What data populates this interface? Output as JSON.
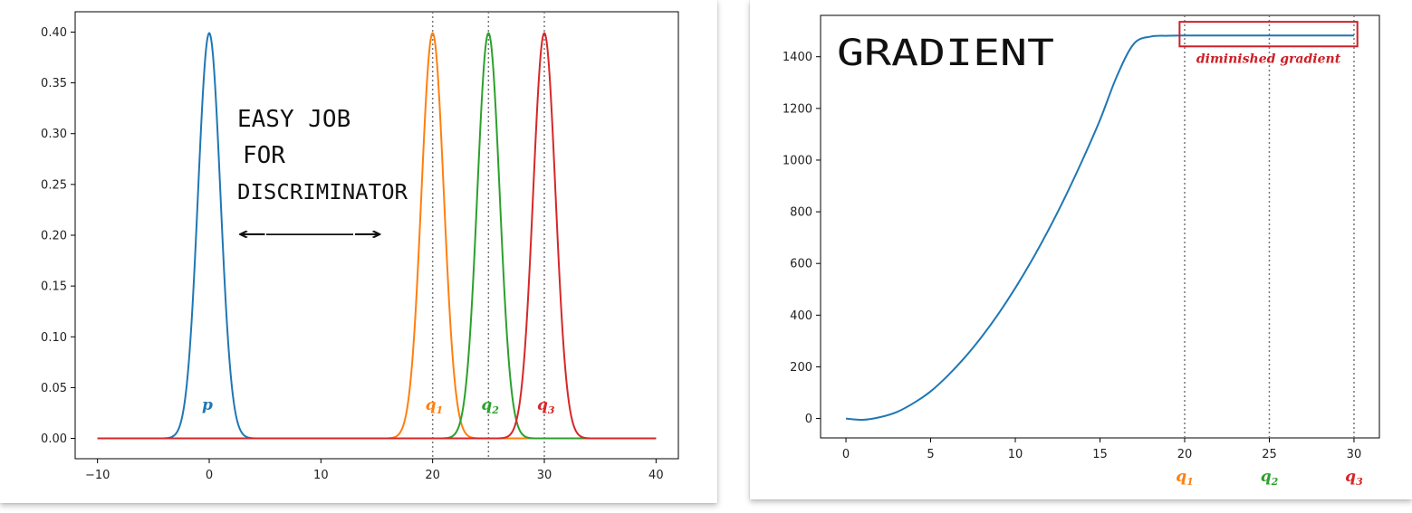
{
  "colors": {
    "p": "#1f77b4",
    "q1": "#ff7f0e",
    "q2": "#2ca02c",
    "q3": "#d62728",
    "annotation": "#cc2027",
    "grid_line": "#777777"
  },
  "chart_data": [
    {
      "type": "line",
      "x_range": [
        -10,
        40
      ],
      "xlim": [
        -12,
        42
      ],
      "ylim": [
        -0.02,
        0.42
      ],
      "xticks": [
        -10,
        0,
        10,
        20,
        30,
        40
      ],
      "xtick_labels": [
        "−10",
        "0",
        "10",
        "20",
        "30",
        "40"
      ],
      "yticks": [
        0.0,
        0.05,
        0.1,
        0.15,
        0.2,
        0.25,
        0.3,
        0.35,
        0.4
      ],
      "ytick_labels": [
        "0.00",
        "0.05",
        "0.10",
        "0.15",
        "0.20",
        "0.25",
        "0.30",
        "0.35",
        "0.40"
      ],
      "series": [
        {
          "label": "p",
          "sub": "",
          "mean": 0,
          "std": 1,
          "color_key": "p"
        },
        {
          "label": "q",
          "sub": "1",
          "mean": 20,
          "std": 1,
          "color_key": "q1"
        },
        {
          "label": "q",
          "sub": "2",
          "mean": 25,
          "std": 1,
          "color_key": "q2"
        },
        {
          "label": "q",
          "sub": "3",
          "mean": 30,
          "std": 1,
          "color_key": "q3"
        }
      ],
      "vlines": [
        20,
        25,
        30
      ],
      "handwritten_text": [
        "EASY JOB",
        "FOR",
        "DISCRIMINATOR"
      ],
      "arrow_symbol": "←———→"
    },
    {
      "type": "line",
      "title": "GRADIENT",
      "xlim": [
        -1.5,
        31.5
      ],
      "ylim": [
        -75,
        1560
      ],
      "xticks": [
        0,
        5,
        10,
        15,
        20,
        25,
        30
      ],
      "xtick_labels": [
        "0",
        "5",
        "10",
        "15",
        "20",
        "25",
        "30"
      ],
      "yticks": [
        0,
        200,
        400,
        600,
        800,
        1000,
        1200,
        1400
      ],
      "ytick_labels": [
        "0",
        "200",
        "400",
        "600",
        "800",
        "1000",
        "1200",
        "1400"
      ],
      "x": [
        0,
        1,
        2,
        3,
        4,
        5,
        6,
        7,
        8,
        9,
        10,
        11,
        12,
        13,
        14,
        15,
        16,
        17,
        18,
        19,
        20,
        21,
        22,
        23,
        24,
        25,
        26,
        27,
        28,
        29,
        30
      ],
      "y": [
        0,
        -5,
        5,
        25,
        60,
        105,
        165,
        235,
        315,
        405,
        505,
        615,
        735,
        865,
        1005,
        1155,
        1325,
        1450,
        1478,
        1481,
        1482,
        1482,
        1482,
        1482,
        1482,
        1482,
        1482,
        1482,
        1482,
        1482,
        1482
      ],
      "color_key": "p",
      "vlines": [
        20,
        25,
        30
      ],
      "q_labels": [
        {
          "x": 20,
          "label": "q",
          "sub": "1",
          "color_key": "q1"
        },
        {
          "x": 25,
          "label": "q",
          "sub": "2",
          "color_key": "q2"
        },
        {
          "x": 30,
          "label": "q",
          "sub": "3",
          "color_key": "q3"
        }
      ],
      "annotation": {
        "text": "diminished gradient",
        "x_from": 19.7,
        "x_to": 30.2,
        "y_from": 1440,
        "y_to": 1535
      }
    }
  ]
}
